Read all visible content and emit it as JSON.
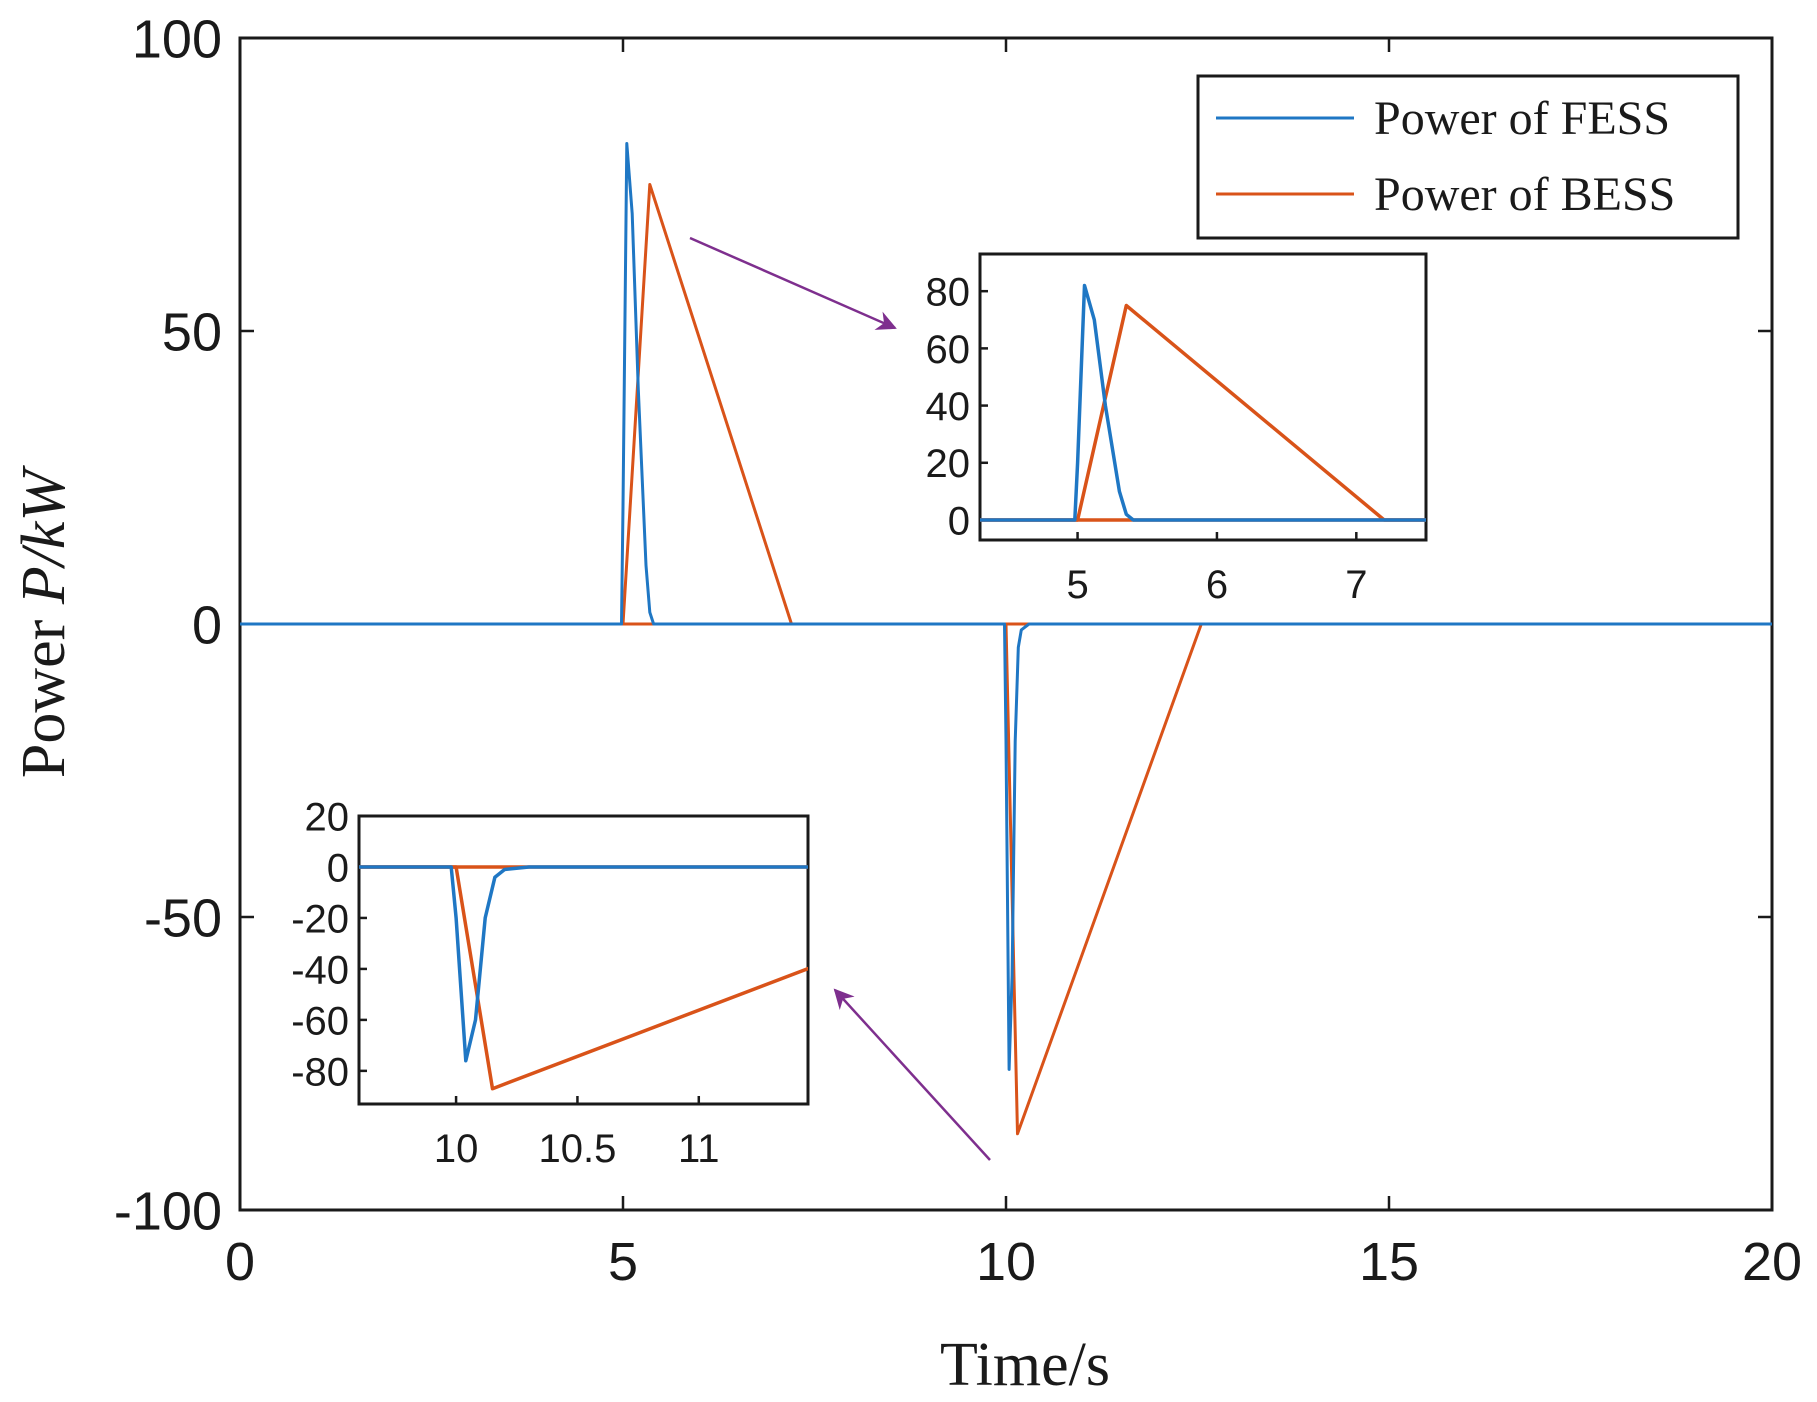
{
  "chart_data": {
    "type": "line",
    "xlabel": "Time/s",
    "ylabel_prefix": "Power ",
    "ylabel_var": "P/kW",
    "xlim": [
      0,
      20
    ],
    "ylim": [
      -100,
      100
    ],
    "xticks": [
      0,
      5,
      10,
      15,
      20
    ],
    "xtick_labels": [
      "0",
      "5",
      "10",
      "15",
      "20"
    ],
    "yticks": [
      100,
      50,
      0,
      -50,
      -100
    ],
    "ytick_labels": [
      "100",
      "50",
      "0",
      "-50",
      "-100"
    ],
    "legend": {
      "placement": "top-right",
      "entries": [
        "Power of FESS",
        "Power of BESS"
      ]
    },
    "colors": {
      "fess": "#1f77c4",
      "bess": "#d95319",
      "arrow": "#7e2f8e",
      "axis": "#1a1a1a"
    },
    "series": [
      {
        "name": "Power of FESS",
        "x": [
          0,
          4.98,
          5.0,
          5.05,
          5.12,
          5.2,
          5.3,
          5.35,
          5.4,
          9.98,
          10.0,
          10.04,
          10.08,
          10.12,
          10.16,
          10.2,
          10.3,
          20
        ],
        "y": [
          0,
          0,
          20,
          82,
          70,
          40,
          10,
          2,
          0,
          0,
          -20,
          -76,
          -60,
          -20,
          -4,
          -1,
          0,
          0
        ]
      },
      {
        "name": "Power of BESS",
        "x": [
          0,
          5.0,
          5.35,
          7.2,
          20
        ],
        "y": [
          0,
          0,
          75,
          0,
          0
        ],
        "x2": [
          0,
          10.0,
          10.15,
          12.55,
          20
        ],
        "y2": [
          0,
          0,
          -87,
          0,
          0
        ]
      }
    ],
    "insets": [
      {
        "name": "zoom-rise",
        "xlim": [
          4.3,
          7.5
        ],
        "ylim": [
          -7,
          93
        ],
        "xticks": [
          5,
          6,
          7
        ],
        "xtick_labels": [
          "5",
          "6",
          "7"
        ],
        "yticks": [
          80,
          60,
          40,
          20,
          0
        ],
        "ytick_labels": [
          "80",
          "60",
          "40",
          "20",
          "0"
        ]
      },
      {
        "name": "zoom-fall",
        "xlim": [
          9.6,
          11.45
        ],
        "ylim": [
          -93,
          20
        ],
        "xticks": [
          10,
          10.5,
          11
        ],
        "xtick_labels": [
          "10",
          "10.5",
          "11"
        ],
        "yticks": [
          20,
          0,
          -20,
          -40,
          -60,
          -80
        ],
        "ytick_labels": [
          "20",
          "0",
          "-20",
          "-40",
          "-60",
          "-80"
        ]
      }
    ]
  }
}
